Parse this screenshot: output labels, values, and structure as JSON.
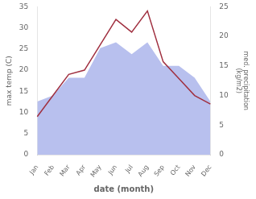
{
  "chart_data": {
    "type": "line",
    "categories": [
      "Jan",
      "Feb",
      "Mar",
      "Apr",
      "May",
      "Jun",
      "Jul",
      "Aug",
      "Sep",
      "Oct",
      "Nov",
      "Dec"
    ],
    "series": [
      {
        "type": "line",
        "color": "#a03040",
        "values": [
          9,
          14,
          19,
          20,
          26,
          32,
          29,
          34,
          22,
          18,
          14,
          12
        ]
      },
      {
        "type": "area",
        "axis": "y2",
        "color": "#b8c0ee",
        "values": [
          9,
          10,
          13,
          13,
          18,
          19,
          17,
          19,
          15,
          15,
          13,
          9
        ]
      }
    ],
    "xlabel": "date (month)",
    "ylabel": "max temp (C)",
    "y2label": "med. precipitation\n(kg/m2)",
    "ylim": [
      0,
      35
    ],
    "yticks": [
      0,
      5,
      10,
      15,
      20,
      25,
      30,
      35
    ],
    "y2lim": [
      0,
      25
    ],
    "y2ticks": [
      0,
      5,
      10,
      15,
      20,
      25
    ],
    "grid": false
  }
}
